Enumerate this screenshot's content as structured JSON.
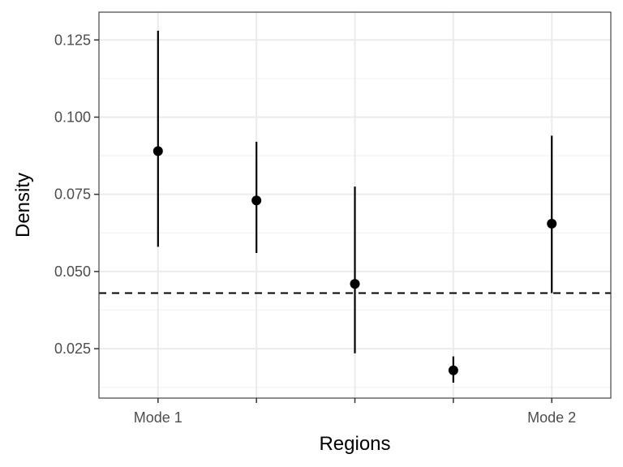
{
  "chart_data": {
    "type": "scatter",
    "xlabel": "Regions",
    "ylabel": "Density",
    "x_positions": [
      1,
      2,
      3,
      4,
      5
    ],
    "x_tick_labels": [
      "Mode 1",
      "",
      "",
      "",
      "Mode 2"
    ],
    "xlim": [
      0.4,
      5.6
    ],
    "ylim": [
      0.009,
      0.134
    ],
    "y_ticks": [
      0.025,
      0.05,
      0.075,
      0.1,
      0.125
    ],
    "y_tick_labels": [
      "0.025",
      "0.050",
      "0.075",
      "0.100",
      "0.125"
    ],
    "points": [
      {
        "x": 1,
        "y": 0.089,
        "lower": 0.058,
        "upper": 0.128
      },
      {
        "x": 2,
        "y": 0.073,
        "lower": 0.056,
        "upper": 0.092
      },
      {
        "x": 3,
        "y": 0.046,
        "lower": 0.0235,
        "upper": 0.0775
      },
      {
        "x": 4,
        "y": 0.018,
        "lower": 0.014,
        "upper": 0.0225
      },
      {
        "x": 5,
        "y": 0.0655,
        "lower": 0.043,
        "upper": 0.094
      }
    ],
    "reference_line": {
      "y": 0.043,
      "style": "dashed",
      "color": "#000000"
    },
    "grid": true,
    "legend": "none",
    "colors": {
      "point": "#000000",
      "grid_major": "#ebebeb",
      "grid_minor": "#f2f2f2",
      "panel_border": "#333333"
    }
  }
}
